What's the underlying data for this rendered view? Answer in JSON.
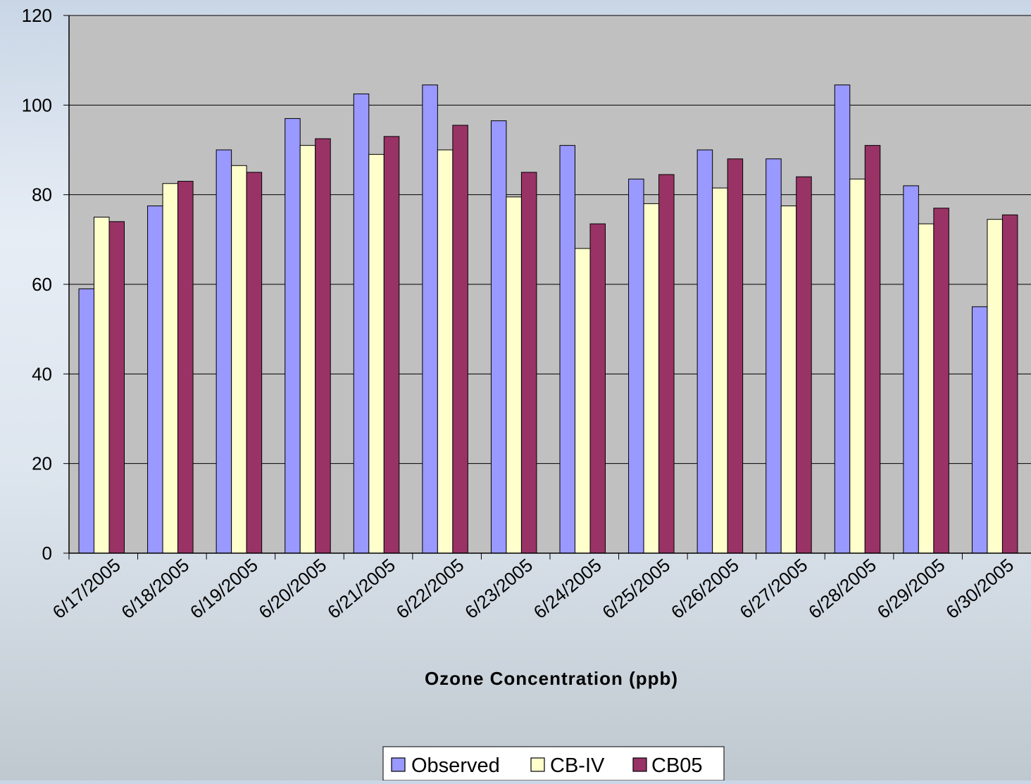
{
  "chart_data": {
    "type": "bar",
    "title": "",
    "xlabel": "Ozone Concentration (ppb)",
    "ylabel": "",
    "ylim": [
      0,
      120
    ],
    "yticks": [
      0,
      20,
      40,
      60,
      80,
      100,
      120
    ],
    "grid": true,
    "legend_position": "bottom-center",
    "categories": [
      "6/17/2005",
      "6/18/2005",
      "6/19/2005",
      "6/20/2005",
      "6/21/2005",
      "6/22/2005",
      "6/23/2005",
      "6/24/2005",
      "6/25/2005",
      "6/26/2005",
      "6/27/2005",
      "6/28/2005",
      "6/29/2005",
      "6/30/2005"
    ],
    "series": [
      {
        "name": "Observed",
        "color": "#9999ff",
        "values": [
          59,
          77.5,
          90,
          97,
          102.5,
          104.5,
          96.5,
          91,
          83.5,
          90,
          88,
          104.5,
          82,
          55
        ]
      },
      {
        "name": "CB-IV",
        "color": "#ffffcc",
        "values": [
          75,
          82.5,
          86.5,
          91,
          89,
          90,
          79.5,
          68,
          78,
          81.5,
          77.5,
          83.5,
          73.5,
          74.5
        ]
      },
      {
        "name": "CB05",
        "color": "#993366",
        "values": [
          74,
          83,
          85,
          92.5,
          93,
          95.5,
          85,
          73.5,
          84.5,
          88,
          84,
          91,
          77,
          75.5
        ]
      }
    ],
    "plot_background": "#c0c0c0",
    "axis_color": "#000000"
  }
}
